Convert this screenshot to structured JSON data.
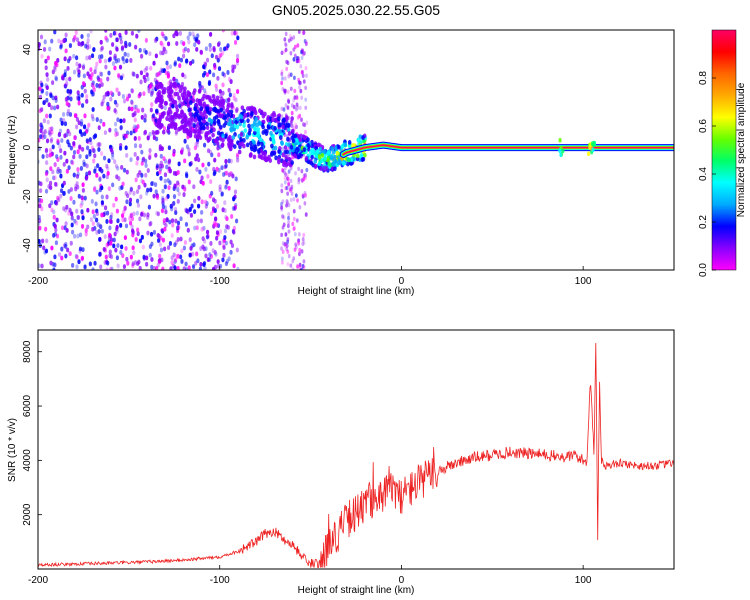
{
  "figure_title": "GN05.2025.030.22.55.G05",
  "chart_data": [
    {
      "type": "heatmap",
      "xlabel": "Height of straight line (km)",
      "ylabel": "Frequency (Hz)",
      "xlim": [
        -200,
        150
      ],
      "ylim": [
        -50,
        48
      ],
      "xticks": [
        -200,
        -100,
        0,
        100
      ],
      "yticks": [
        -40,
        -20,
        0,
        20,
        40
      ],
      "colorbar": {
        "label": "Normalized spectral amplitude",
        "range": [
          0,
          1
        ],
        "ticks": [
          "0.0",
          "0.2",
          "0.4",
          "0.6",
          "0.8"
        ],
        "colors": [
          "#ff00ff",
          "#8800ff",
          "#0000ff",
          "#00aaff",
          "#00ffff",
          "#00ff66",
          "#66ff00",
          "#ffff00",
          "#ffaa00",
          "#ff6600",
          "#ff0000",
          "#ff0066"
        ]
      },
      "ridge": {
        "x": [
          -120,
          -100,
          -80,
          -60,
          -50,
          -45,
          -40,
          -35,
          -30,
          -20,
          -10,
          0,
          20,
          60,
          100,
          150
        ],
        "y": [
          16,
          10,
          6,
          2,
          -2,
          -4,
          -5,
          -4,
          -2,
          0,
          1,
          0,
          0,
          0,
          0,
          0
        ],
        "amplitude": [
          0.15,
          0.3,
          0.4,
          0.4,
          0.5,
          0.55,
          0.6,
          0.7,
          0.8,
          0.9,
          0.95,
          1,
          1,
          1,
          1,
          1
        ]
      },
      "grid": false
    },
    {
      "type": "line",
      "xlabel": "Height of straight line (km)",
      "ylabel": "SNR (10 * v/v)",
      "xlim": [
        -200,
        150
      ],
      "ylim": [
        0,
        8800
      ],
      "xticks": [
        -200,
        -100,
        0,
        100
      ],
      "yticks": [
        2000,
        4000,
        6000,
        8000
      ],
      "series": [
        {
          "color": "#ee2222",
          "x": [
            -200,
            -180,
            -160,
            -140,
            -120,
            -100,
            -90,
            -80,
            -75,
            -70,
            -65,
            -60,
            -55,
            -50,
            -45,
            -40,
            -35,
            -30,
            -25,
            -20,
            -15,
            -10,
            -5,
            0,
            10,
            20,
            30,
            40,
            60,
            80,
            90,
            95,
            100,
            102,
            104,
            106,
            107,
            108,
            109,
            110,
            112,
            120,
            130,
            140,
            150
          ],
          "y": [
            150,
            180,
            220,
            260,
            330,
            450,
            650,
            1000,
            1300,
            1400,
            1100,
            900,
            500,
            200,
            180,
            900,
            1300,
            1800,
            2100,
            2300,
            2600,
            2800,
            2900,
            2700,
            3200,
            3600,
            3900,
            4100,
            4300,
            4200,
            4100,
            4200,
            4000,
            3900,
            7100,
            4200,
            8500,
            1200,
            7000,
            4000,
            3800,
            3900,
            3800,
            3800,
            3900
          ]
        }
      ],
      "grid": false
    }
  ]
}
